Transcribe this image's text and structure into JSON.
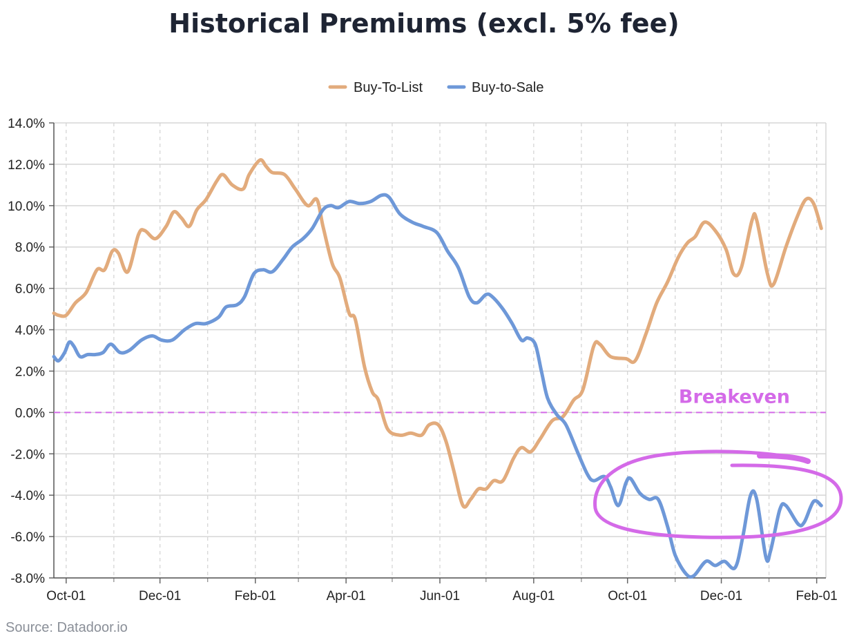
{
  "source": "Source: Datadoor.io",
  "colors": {
    "Buy-To-List": "#e2ab7c",
    "Buy-to-Sale": "#6e98d8",
    "breakeven": "#d46ae8",
    "grid": "#d5d5d5"
  },
  "chart_data": {
    "type": "line",
    "title": "Historical Premiums (excl. 5% fee)",
    "xlabel": "",
    "ylabel": "",
    "x_start": "2022-09-23",
    "x_end": "2024-02-07",
    "x_ticks": [
      {
        "date": "2022-10-01",
        "label": "Oct-01"
      },
      {
        "date": "2022-12-01",
        "label": "Dec-01"
      },
      {
        "date": "2023-02-01",
        "label": "Feb-01"
      },
      {
        "date": "2023-04-01",
        "label": "Apr-01"
      },
      {
        "date": "2023-06-01",
        "label": "Jun-01"
      },
      {
        "date": "2023-08-01",
        "label": "Aug-01"
      },
      {
        "date": "2023-10-01",
        "label": "Oct-01"
      },
      {
        "date": "2023-12-01",
        "label": "Dec-01"
      },
      {
        "date": "2024-02-01",
        "label": "Feb-01"
      }
    ],
    "minor_ticks": [
      "2022-11-01",
      "2023-01-01",
      "2023-03-01",
      "2023-05-01",
      "2023-07-01",
      "2023-09-01",
      "2023-11-01",
      "2024-01-01"
    ],
    "ylim": [
      -8,
      14
    ],
    "y_ticks": [
      {
        "value": 14,
        "label": "14.0%"
      },
      {
        "value": 12,
        "label": "12.0%"
      },
      {
        "value": 10,
        "label": "10.0%"
      },
      {
        "value": 8,
        "label": "8.0%"
      },
      {
        "value": 6,
        "label": "6.0%"
      },
      {
        "value": 4,
        "label": "4.0%"
      },
      {
        "value": 2,
        "label": "2.0%"
      },
      {
        "value": 0,
        "label": "0.0%"
      },
      {
        "value": -2,
        "label": "-2.0%"
      },
      {
        "value": -4,
        "label": "-4.0%"
      },
      {
        "value": -6,
        "label": "-6.0%"
      },
      {
        "value": -8,
        "label": "-8.0%"
      }
    ],
    "grid": true,
    "legend": "top-center",
    "reference_line": {
      "y": 0,
      "label": "Breakeven"
    },
    "annotation": "ellipse around Buy-to-Sale from early Sep-2023 to Feb-2024",
    "series": [
      {
        "name": "Buy-To-List",
        "points": [
          [
            "2022-09-23",
            4.8
          ],
          [
            "2022-09-26",
            4.7
          ],
          [
            "2022-10-01",
            4.7
          ],
          [
            "2022-10-07",
            5.3
          ],
          [
            "2022-10-14",
            5.8
          ],
          [
            "2022-10-21",
            6.9
          ],
          [
            "2022-10-26",
            6.9
          ],
          [
            "2022-10-31",
            7.8
          ],
          [
            "2022-11-04",
            7.7
          ],
          [
            "2022-11-10",
            6.8
          ],
          [
            "2022-11-17",
            8.6
          ],
          [
            "2022-11-21",
            8.8
          ],
          [
            "2022-11-28",
            8.4
          ],
          [
            "2022-12-05",
            9.0
          ],
          [
            "2022-12-10",
            9.7
          ],
          [
            "2022-12-15",
            9.4
          ],
          [
            "2022-12-20",
            9.0
          ],
          [
            "2022-12-25",
            9.8
          ],
          [
            "2022-12-31",
            10.3
          ],
          [
            "2023-01-07",
            11.2
          ],
          [
            "2023-01-11",
            11.5
          ],
          [
            "2023-01-17",
            11.0
          ],
          [
            "2023-01-24",
            10.8
          ],
          [
            "2023-01-28",
            11.5
          ],
          [
            "2023-02-04",
            12.2
          ],
          [
            "2023-02-08",
            11.9
          ],
          [
            "2023-02-12",
            11.6
          ],
          [
            "2023-02-20",
            11.5
          ],
          [
            "2023-02-27",
            10.8
          ],
          [
            "2023-03-07",
            10.0
          ],
          [
            "2023-03-13",
            10.3
          ],
          [
            "2023-03-17",
            9.0
          ],
          [
            "2023-03-23",
            7.2
          ],
          [
            "2023-03-28",
            6.5
          ],
          [
            "2023-04-03",
            4.8
          ],
          [
            "2023-04-07",
            4.5
          ],
          [
            "2023-04-13",
            2.2
          ],
          [
            "2023-04-18",
            1.0
          ],
          [
            "2023-04-22",
            0.6
          ],
          [
            "2023-04-28",
            -0.8
          ],
          [
            "2023-05-06",
            -1.1
          ],
          [
            "2023-05-13",
            -1.0
          ],
          [
            "2023-05-20",
            -1.1
          ],
          [
            "2023-05-25",
            -0.6
          ],
          [
            "2023-05-31",
            -0.6
          ],
          [
            "2023-06-05",
            -1.4
          ],
          [
            "2023-06-10",
            -2.8
          ],
          [
            "2023-06-16",
            -4.5
          ],
          [
            "2023-06-21",
            -4.2
          ],
          [
            "2023-06-26",
            -3.7
          ],
          [
            "2023-07-01",
            -3.7
          ],
          [
            "2023-07-06",
            -3.3
          ],
          [
            "2023-07-12",
            -3.3
          ],
          [
            "2023-07-19",
            -2.2
          ],
          [
            "2023-07-24",
            -1.7
          ],
          [
            "2023-07-30",
            -1.9
          ],
          [
            "2023-08-05",
            -1.3
          ],
          [
            "2023-08-13",
            -0.4
          ],
          [
            "2023-08-20",
            -0.2
          ],
          [
            "2023-08-27",
            0.6
          ],
          [
            "2023-09-02",
            1.1
          ],
          [
            "2023-09-09",
            3.2
          ],
          [
            "2023-09-13",
            3.3
          ],
          [
            "2023-09-20",
            2.7
          ],
          [
            "2023-09-30",
            2.6
          ],
          [
            "2023-10-06",
            2.5
          ],
          [
            "2023-10-13",
            3.8
          ],
          [
            "2023-10-20",
            5.3
          ],
          [
            "2023-10-27",
            6.3
          ],
          [
            "2023-11-03",
            7.5
          ],
          [
            "2023-11-09",
            8.2
          ],
          [
            "2023-11-14",
            8.5
          ],
          [
            "2023-11-20",
            9.2
          ],
          [
            "2023-11-27",
            8.8
          ],
          [
            "2023-12-04",
            7.9
          ],
          [
            "2023-12-09",
            6.7
          ],
          [
            "2023-12-14",
            7.0
          ],
          [
            "2023-12-21",
            9.3
          ],
          [
            "2023-12-24",
            9.3
          ],
          [
            "2023-12-31",
            6.7
          ],
          [
            "2024-01-04",
            6.2
          ],
          [
            "2024-01-12",
            8.0
          ],
          [
            "2024-01-19",
            9.4
          ],
          [
            "2024-01-25",
            10.3
          ],
          [
            "2024-01-30",
            10.1
          ],
          [
            "2024-02-04",
            8.9
          ]
        ]
      },
      {
        "name": "Buy-to-Sale",
        "points": [
          [
            "2022-09-23",
            2.7
          ],
          [
            "2022-09-26",
            2.5
          ],
          [
            "2022-09-30",
            2.9
          ],
          [
            "2022-10-03",
            3.4
          ],
          [
            "2022-10-06",
            3.2
          ],
          [
            "2022-10-10",
            2.7
          ],
          [
            "2022-10-15",
            2.8
          ],
          [
            "2022-10-20",
            2.8
          ],
          [
            "2022-10-25",
            2.9
          ],
          [
            "2022-10-30",
            3.3
          ],
          [
            "2022-11-05",
            2.9
          ],
          [
            "2022-11-11",
            3.0
          ],
          [
            "2022-11-19",
            3.5
          ],
          [
            "2022-11-26",
            3.7
          ],
          [
            "2022-12-02",
            3.5
          ],
          [
            "2022-12-09",
            3.5
          ],
          [
            "2022-12-17",
            4.0
          ],
          [
            "2022-12-24",
            4.3
          ],
          [
            "2022-12-31",
            4.3
          ],
          [
            "2023-01-08",
            4.6
          ],
          [
            "2023-01-13",
            5.1
          ],
          [
            "2023-01-20",
            5.2
          ],
          [
            "2023-01-25",
            5.6
          ],
          [
            "2023-01-31",
            6.7
          ],
          [
            "2023-02-06",
            6.9
          ],
          [
            "2023-02-12",
            6.8
          ],
          [
            "2023-02-19",
            7.4
          ],
          [
            "2023-02-25",
            8.0
          ],
          [
            "2023-03-04",
            8.4
          ],
          [
            "2023-03-10",
            8.9
          ],
          [
            "2023-03-17",
            9.8
          ],
          [
            "2023-03-22",
            10.0
          ],
          [
            "2023-03-27",
            9.9
          ],
          [
            "2023-04-03",
            10.2
          ],
          [
            "2023-04-10",
            10.1
          ],
          [
            "2023-04-17",
            10.2
          ],
          [
            "2023-04-24",
            10.5
          ],
          [
            "2023-04-29",
            10.4
          ],
          [
            "2023-05-06",
            9.6
          ],
          [
            "2023-05-14",
            9.2
          ],
          [
            "2023-05-21",
            9.0
          ],
          [
            "2023-05-30",
            8.7
          ],
          [
            "2023-06-06",
            7.8
          ],
          [
            "2023-06-13",
            7.0
          ],
          [
            "2023-06-20",
            5.6
          ],
          [
            "2023-06-25",
            5.3
          ],
          [
            "2023-07-01",
            5.7
          ],
          [
            "2023-07-05",
            5.6
          ],
          [
            "2023-07-12",
            5.0
          ],
          [
            "2023-07-18",
            4.3
          ],
          [
            "2023-07-24",
            3.5
          ],
          [
            "2023-07-28",
            3.6
          ],
          [
            "2023-08-02",
            3.3
          ],
          [
            "2023-08-06",
            2.0
          ],
          [
            "2023-08-10",
            0.7
          ],
          [
            "2023-08-16",
            -0.1
          ],
          [
            "2023-08-22",
            -0.6
          ],
          [
            "2023-08-30",
            -2.0
          ],
          [
            "2023-09-05",
            -3.0
          ],
          [
            "2023-09-09",
            -3.3
          ],
          [
            "2023-09-16",
            -3.1
          ],
          [
            "2023-09-20",
            -3.6
          ],
          [
            "2023-09-25",
            -4.5
          ],
          [
            "2023-09-30",
            -3.4
          ],
          [
            "2023-10-03",
            -3.2
          ],
          [
            "2023-10-09",
            -3.9
          ],
          [
            "2023-10-15",
            -4.2
          ],
          [
            "2023-10-21",
            -4.2
          ],
          [
            "2023-10-27",
            -5.5
          ],
          [
            "2023-11-01",
            -6.9
          ],
          [
            "2023-11-08",
            -7.8
          ],
          [
            "2023-11-13",
            -7.9
          ],
          [
            "2023-11-21",
            -7.2
          ],
          [
            "2023-11-27",
            -7.4
          ],
          [
            "2023-12-03",
            -7.2
          ],
          [
            "2023-12-10",
            -7.5
          ],
          [
            "2023-12-15",
            -6.0
          ],
          [
            "2023-12-20",
            -4.0
          ],
          [
            "2023-12-24",
            -4.2
          ],
          [
            "2023-12-30",
            -7.0
          ],
          [
            "2024-01-02",
            -6.7
          ],
          [
            "2024-01-08",
            -4.7
          ],
          [
            "2024-01-12",
            -4.5
          ],
          [
            "2024-01-20",
            -5.4
          ],
          [
            "2024-01-24",
            -5.3
          ],
          [
            "2024-01-30",
            -4.3
          ],
          [
            "2024-02-04",
            -4.5
          ]
        ]
      }
    ]
  }
}
